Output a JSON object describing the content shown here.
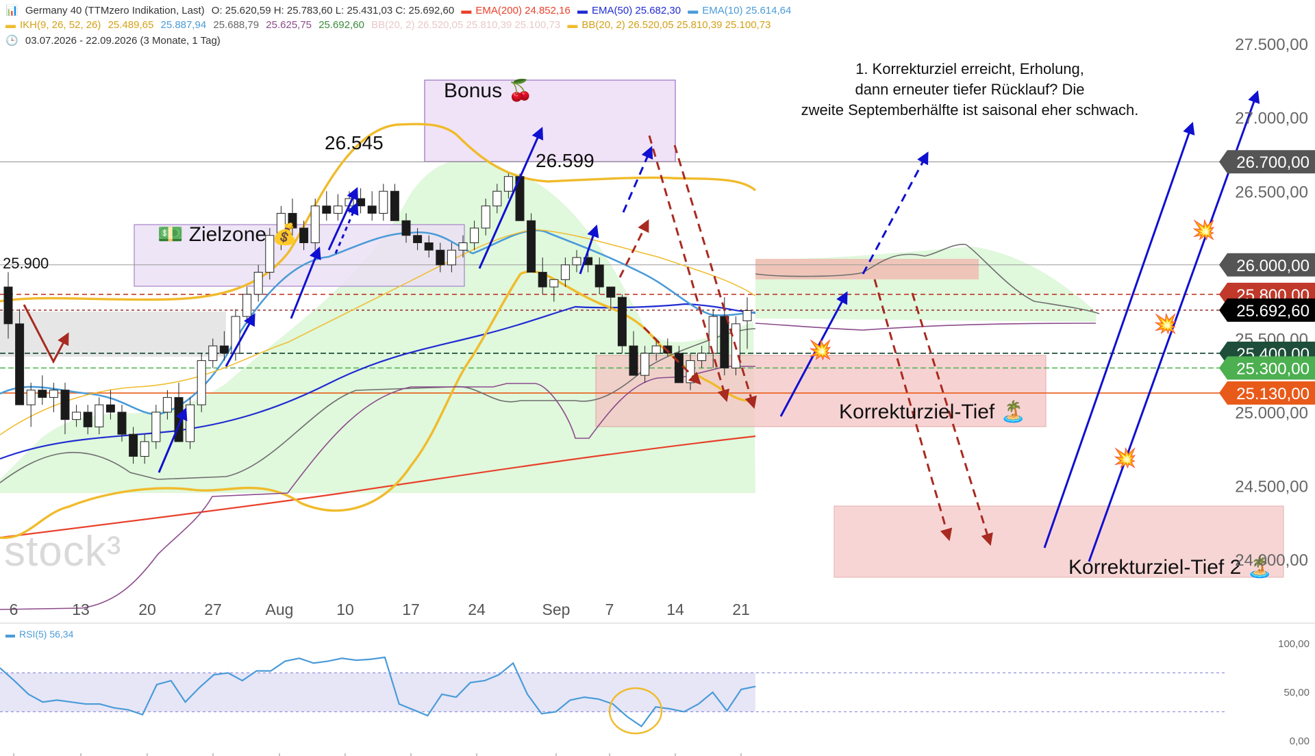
{
  "header": {
    "line1": {
      "instrument": "Germany 40 (TTMzero Indikation, Last)",
      "ohlc": "O: 25.620,59  H: 25.783,60  L: 25.431,03  C: 25.692,60",
      "ema200": "EMA(200)  24.852,16",
      "ema50": "EMA(50)  25.682,30",
      "ema10": "EMA(10)  25.614,64"
    },
    "line2": {
      "ikh": "IKH(9, 26, 52, 26)",
      "ikh_values": [
        "25.489,65",
        "25.887,94",
        "25.688,79",
        "25.625,75",
        "25.692,60"
      ],
      "bb_faded": "BB(20, 2)  26.520,05  25.810,39  25.100,73",
      "bb": "BB(20, 2)  26.520,05  25.810,39  25.100,73"
    },
    "line3": {
      "range": "03.07.2026 - 22.09.2026   (3 Monate, 1 Tag)"
    }
  },
  "colors": {
    "ema200": "#e8402a",
    "ema50": "#1f2bd1",
    "ema10": "#4a9bd8",
    "bb": "#f0bb2c",
    "ikh": "#f5c842",
    "cloud": "#d6f5d0",
    "down": "#1a1a1a",
    "up": "#ffffff",
    "arrow_blue": "#1010d0",
    "arrow_red": "#a82a20",
    "rsi": "#4a9bd8"
  },
  "chart_data": [
    {
      "type": "candlestick",
      "title": "Germany 40 (TTMzero Indikation, Last)",
      "x_tick_labels": [
        "6",
        "13",
        "20",
        "27",
        "Aug",
        "10",
        "17",
        "24",
        "Sep",
        "7",
        "14",
        "21"
      ],
      "y_tick_labels": [
        "27.500,00",
        "27.000,00",
        "26.500,00",
        "25.500,00",
        "25.000,00",
        "24.500,00",
        "24.000,00"
      ],
      "ylim": [
        23700,
        27700
      ],
      "candles": [
        [
          25850,
          25950,
          25500,
          25600
        ],
        [
          25600,
          25700,
          25050,
          25050
        ],
        [
          25050,
          25200,
          24900,
          25150
        ],
        [
          25150,
          25250,
          25050,
          25100
        ],
        [
          25100,
          25200,
          25000,
          25150
        ],
        [
          25150,
          25200,
          24850,
          24950
        ],
        [
          24950,
          25050,
          24900,
          25000
        ],
        [
          25000,
          25050,
          24850,
          24900
        ],
        [
          24900,
          25100,
          24850,
          25050
        ],
        [
          25050,
          25150,
          24950,
          25000
        ],
        [
          25000,
          25050,
          24800,
          24850
        ],
        [
          24850,
          24900,
          24650,
          24700
        ],
        [
          24700,
          24850,
          24650,
          24800
        ],
        [
          24800,
          25050,
          24750,
          25000
        ],
        [
          25000,
          25150,
          24950,
          25100
        ],
        [
          25100,
          25200,
          24800,
          24800
        ],
        [
          24800,
          25100,
          24750,
          25050
        ],
        [
          25050,
          25400,
          25000,
          25350
        ],
        [
          25350,
          25500,
          25300,
          25450
        ],
        [
          25450,
          25550,
          25350,
          25400
        ],
        [
          25400,
          25700,
          25350,
          25650
        ],
        [
          25650,
          25850,
          25600,
          25800
        ],
        [
          25800,
          26000,
          25750,
          25950
        ],
        [
          25950,
          26250,
          25900,
          26200
        ],
        [
          26200,
          26400,
          26100,
          26350
        ],
        [
          26350,
          26450,
          26200,
          26250
        ],
        [
          26250,
          26300,
          26100,
          26150
        ],
        [
          26150,
          26450,
          26100,
          26400
        ],
        [
          26400,
          26500,
          26300,
          26350
        ],
        [
          26350,
          26480,
          26300,
          26400
        ],
        [
          26400,
          26500,
          26350,
          26450
        ],
        [
          26450,
          26520,
          26350,
          26400
        ],
        [
          26400,
          26500,
          26300,
          26350
        ],
        [
          26350,
          26550,
          26300,
          26500
        ],
        [
          26500,
          26550,
          26300,
          26300
        ],
        [
          26300,
          26350,
          26150,
          26200
        ],
        [
          26200,
          26250,
          26100,
          26150
        ],
        [
          26150,
          26200,
          26050,
          26100
        ],
        [
          26100,
          26150,
          25950,
          26000
        ],
        [
          26000,
          26150,
          25950,
          26100
        ],
        [
          26100,
          26200,
          26050,
          26150
        ],
        [
          26150,
          26300,
          26100,
          26250
        ],
        [
          26250,
          26450,
          26200,
          26400
        ],
        [
          26400,
          26550,
          26350,
          26500
        ],
        [
          26500,
          26620,
          26450,
          26600
        ],
        [
          26600,
          26620,
          26300,
          26300
        ],
        [
          26300,
          26350,
          25950,
          25950
        ],
        [
          25950,
          26050,
          25800,
          25850
        ],
        [
          25850,
          25900,
          25750,
          25900
        ],
        [
          25900,
          26050,
          25850,
          26000
        ],
        [
          26000,
          26100,
          25950,
          26050
        ],
        [
          26050,
          26100,
          25950,
          26000
        ],
        [
          26000,
          26050,
          25800,
          25850
        ],
        [
          25850,
          25850,
          25700,
          25780
        ],
        [
          25780,
          25800,
          25400,
          25450
        ],
        [
          25450,
          25550,
          25250,
          25250
        ],
        [
          25250,
          25450,
          25200,
          25400
        ],
        [
          25400,
          25500,
          25350,
          25450
        ],
        [
          25450,
          25500,
          25380,
          25400
        ],
        [
          25400,
          25450,
          25200,
          25200
        ],
        [
          25200,
          25400,
          25150,
          25350
        ],
        [
          25350,
          25450,
          25300,
          25400
        ],
        [
          25400,
          25700,
          25300,
          25650
        ],
        [
          25650,
          25780,
          25250,
          25300
        ],
        [
          25300,
          25650,
          25250,
          25600
        ],
        [
          25620,
          25780,
          25430,
          25690
        ]
      ],
      "series": [
        {
          "name": "EMA(200)",
          "values_start": 24100,
          "values_end": 24852.16
        },
        {
          "name": "EMA(50)",
          "last": 25682.3
        },
        {
          "name": "EMA(10)",
          "last": 25614.64
        },
        {
          "name": "BB(20, 2)",
          "upper": 26520.05,
          "middle": 25810.39,
          "lower": 25100.73
        }
      ],
      "price_labels": [
        {
          "text": "26.700,00",
          "value": 26700,
          "color": "#555555"
        },
        {
          "text": "26.000,00",
          "value": 26000,
          "color": "#555555"
        },
        {
          "text": "25.800,00",
          "value": 25800,
          "color": "#c0392b"
        },
        {
          "text": "25.692,60",
          "value": 25692.6,
          "color": "#000000"
        },
        {
          "text": "25.400,00",
          "value": 25400,
          "color": "#1e4d3a"
        },
        {
          "text": "25.300,00",
          "value": 25300,
          "color": "#4caf50"
        },
        {
          "text": "25.130,00",
          "value": 25130,
          "color": "#e85a1a"
        }
      ],
      "annotations": {
        "level_25900": "25.900",
        "high_1": "26.545",
        "high_2": "26.599",
        "bonus": "Bonus 🍒",
        "zielzone": "💵 Zielzone 💰",
        "korrektur_tief": "Korrekturziel-Tief 🏝️",
        "korrektur_tief_2": "Korrekturziel-Tief 2 🏝️",
        "note_line1": "1. Korrekturziel erreicht, Erholung,",
        "note_line2": "dann erneuter tiefer Rücklauf? Die",
        "note_line3": "zweite Septemberhälfte ist saisonal eher schwach.",
        "watermark": "stock³",
        "explosion": "💥"
      }
    },
    {
      "type": "line",
      "title": "RSI(5)",
      "legend": "RSI(5)  56,34",
      "last": 56.34,
      "ylim": [
        0,
        100
      ],
      "y_tick_labels": [
        "100,00",
        "50,00",
        "0,00"
      ],
      "values": [
        75,
        62,
        48,
        40,
        42,
        40,
        38,
        38,
        34,
        32,
        27,
        58,
        62,
        40,
        55,
        68,
        70,
        62,
        72,
        72,
        82,
        85,
        80,
        82,
        85,
        83,
        84,
        86,
        38,
        32,
        26,
        48,
        45,
        60,
        62,
        68,
        80,
        48,
        28,
        30,
        42,
        45,
        43,
        38,
        25,
        15,
        35,
        33,
        30,
        38,
        50,
        31,
        53,
        56
      ]
    }
  ]
}
